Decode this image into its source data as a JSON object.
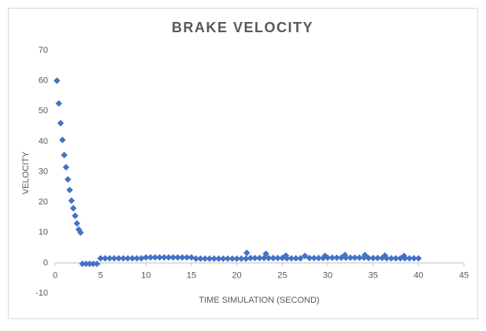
{
  "chart_data": {
    "type": "scatter",
    "title": "BRAKE VELOCITY",
    "x_label": "TIME SIMULATION (SECOND)",
    "y_label": "VELOCITY",
    "series": [
      {
        "color": "#4472c4",
        "x": [
          0.2,
          0.4,
          0.6,
          0.8,
          1.0,
          1.2,
          1.4,
          1.6,
          1.8,
          2.0,
          2.2,
          2.4,
          2.6,
          2.8,
          3.0,
          3.4,
          3.8,
          4.2,
          4.6,
          5,
          5.5,
          6,
          6.5,
          7,
          7.5,
          8,
          8.5,
          9,
          9.5,
          10,
          10.5,
          11,
          11.5,
          12,
          12.5,
          13,
          13.5,
          14,
          14.5,
          15,
          15.5,
          16,
          16.5,
          17,
          17.5,
          18,
          18.5,
          19,
          19.5,
          20,
          20.5,
          21,
          21.1,
          21.5,
          22,
          22.5,
          23,
          23.2,
          23.5,
          24,
          24.5,
          25,
          25.4,
          25.5,
          26,
          26.5,
          27,
          27.5,
          28,
          28.5,
          29,
          29.5,
          29.7,
          30,
          30.5,
          31,
          31.5,
          31.9,
          32,
          32.5,
          33,
          33.5,
          34,
          34.1,
          34.5,
          35,
          35.5,
          36,
          36.3,
          36.5,
          37,
          37.5,
          38,
          38.4,
          38.5,
          39,
          39.5,
          40
        ],
        "values": [
          60,
          52.5,
          46,
          40.5,
          35.5,
          31.5,
          27.5,
          24,
          20.5,
          18,
          15.5,
          13,
          11,
          10,
          -0.3,
          -0.3,
          -0.3,
          -0.3,
          -0.3,
          1.5,
          1.5,
          1.5,
          1.5,
          1.5,
          1.5,
          1.5,
          1.5,
          1.5,
          1.5,
          1.8,
          1.8,
          1.8,
          1.8,
          1.8,
          1.8,
          1.8,
          1.8,
          1.8,
          1.8,
          1.8,
          1.4,
          1.4,
          1.4,
          1.4,
          1.4,
          1.4,
          1.4,
          1.4,
          1.4,
          1.4,
          1.4,
          1.4,
          3.3,
          1.6,
          1.6,
          1.6,
          1.6,
          3.0,
          1.6,
          1.6,
          1.6,
          1.6,
          2.4,
          1.5,
          1.5,
          1.5,
          1.5,
          2.3,
          1.6,
          1.6,
          1.6,
          1.6,
          2.3,
          1.7,
          1.7,
          1.7,
          1.7,
          2.6,
          1.7,
          1.7,
          1.7,
          1.7,
          1.7,
          2.6,
          1.6,
          1.6,
          1.6,
          1.6,
          2.4,
          1.5,
          1.5,
          1.5,
          1.5,
          2.3,
          1.5,
          1.5,
          1.5,
          1.5
        ]
      }
    ],
    "xlim": [
      0,
      45
    ],
    "xticks": [
      0,
      5,
      10,
      15,
      20,
      25,
      30,
      35,
      40,
      45
    ],
    "ylim": [
      -10,
      70
    ],
    "yticks": [
      -10,
      0,
      10,
      20,
      30,
      40,
      50,
      60,
      70
    ],
    "grid": false
  }
}
